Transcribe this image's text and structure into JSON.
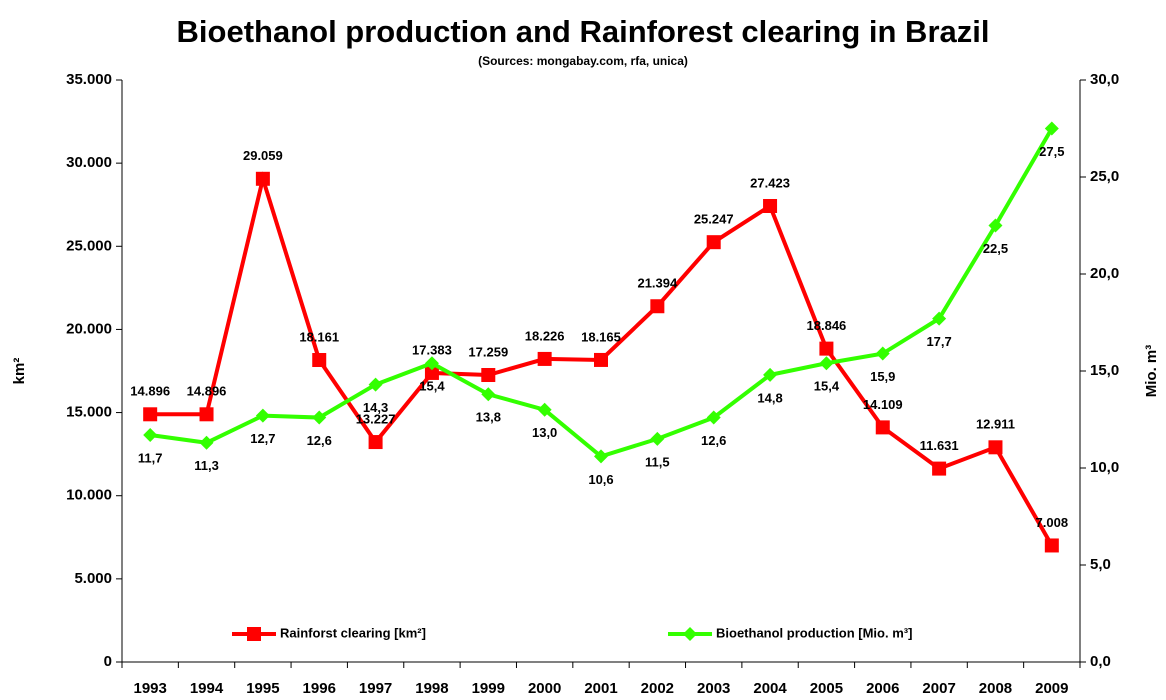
{
  "chart_data": {
    "type": "line",
    "title": "Bioethanol production and Rainforest clearing in Brazil",
    "subtitle": "(Sources: mongabay.com, rfa, unica)",
    "ylabel": "km²",
    "y2label": "Mio. m³",
    "categories": [
      "1993",
      "1994",
      "1995",
      "1996",
      "1997",
      "1998",
      "1999",
      "2000",
      "2001",
      "2002",
      "2003",
      "2004",
      "2005",
      "2006",
      "2007",
      "2008",
      "2009"
    ],
    "series": [
      {
        "name": "Rainforst clearing [km²]",
        "color": "#ff0000",
        "marker": "square",
        "values": [
          14896,
          14896,
          29059,
          18161,
          13227,
          17383,
          17259,
          18226,
          18165,
          21394,
          25247,
          27423,
          18846,
          14109,
          11631,
          12911,
          7008
        ],
        "value_labels": [
          "14.896",
          "14.896",
          "29.059",
          "18.161",
          "13.227",
          "17.383",
          "17.259",
          "18.226",
          "18.165",
          "21.394",
          "25.247",
          "27.423",
          "18.846",
          "14.109",
          "11.631",
          "12.911",
          "7.008"
        ]
      },
      {
        "name": "Bioethanol production [Mio. m³]",
        "color": "#33ff00",
        "marker": "diamond",
        "axis": "y2",
        "values": [
          11.7,
          11.3,
          12.7,
          12.6,
          14.3,
          15.4,
          13.8,
          13.0,
          10.6,
          11.5,
          12.6,
          14.8,
          15.4,
          15.9,
          17.7,
          22.5,
          27.5
        ],
        "value_labels": [
          "11,7",
          "11,3",
          "12,7",
          "12,6",
          "14,3",
          "15,4",
          "13,8",
          "13,0",
          "10,6",
          "11,5",
          "12,6",
          "14,8",
          "15,4",
          "15,9",
          "17,7",
          "22,5",
          "27,5"
        ]
      }
    ],
    "ylim": [
      0,
      35000
    ],
    "yticks": [
      0,
      {
        "value": 5000,
        "label": "5.000"
      },
      {
        "value": 10000,
        "label": "10.000"
      },
      {
        "value": 15000,
        "label": "15.000"
      },
      {
        "value": 20000,
        "label": "20.000"
      },
      {
        "value": 25000,
        "label": "25.000"
      },
      {
        "value": 30000,
        "label": "30.000"
      },
      {
        "value": 35000,
        "label": "35.000"
      }
    ],
    "y2lim": [
      0,
      30
    ],
    "y2ticks": [
      {
        "value": 0,
        "label": "0,0"
      },
      {
        "value": 5,
        "label": "5,0"
      },
      {
        "value": 10,
        "label": "10,0"
      },
      {
        "value": 15,
        "label": "15,0"
      },
      {
        "value": 20,
        "label": "20,0"
      },
      {
        "value": 25,
        "label": "25,0"
      },
      {
        "value": 30,
        "label": "30,0"
      }
    ]
  }
}
